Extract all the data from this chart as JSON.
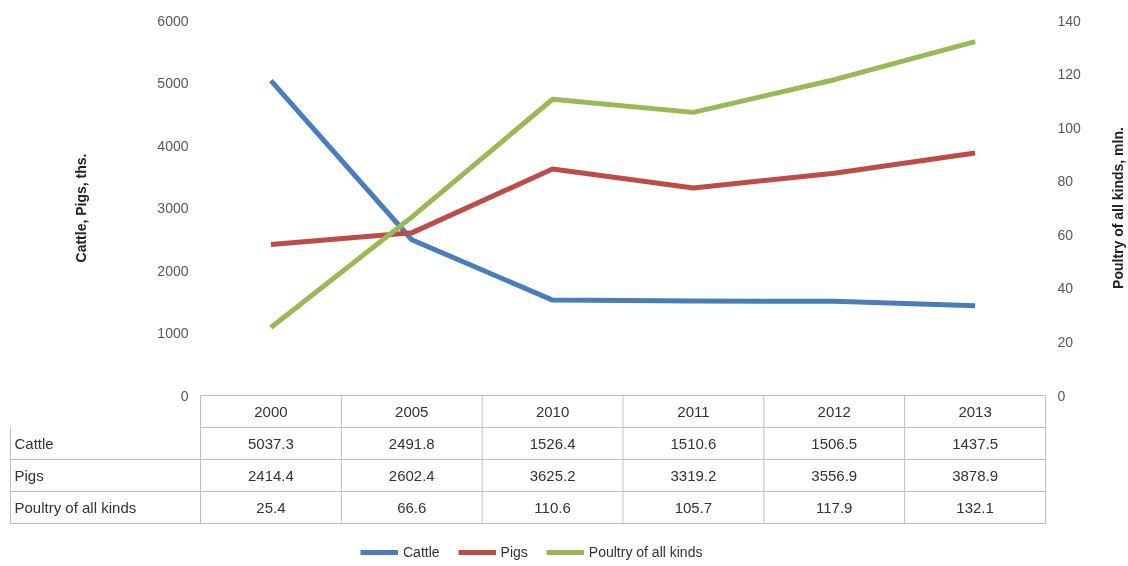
{
  "chart_data": {
    "type": "line",
    "categories": [
      "2000",
      "2005",
      "2010",
      "2011",
      "2012",
      "2013"
    ],
    "series": [
      {
        "name": "Cattle",
        "color": "#4a7ebb",
        "values": [
          5037.3,
          2491.8,
          1526.4,
          1510.6,
          1506.5,
          1437.5
        ]
      },
      {
        "name": "Pigs",
        "color": "#be4b48",
        "values": [
          2414.4,
          2602.4,
          3625.2,
          3319.2,
          3556.9,
          3878.9
        ]
      },
      {
        "name": "Poultry of all kinds",
        "color": "#98b954",
        "values": [
          25.4,
          66.6,
          110.6,
          105.7,
          117.9,
          132.1
        ],
        "axis": "y2"
      }
    ],
    "ylim": [
      0,
      6000
    ],
    "yticks": [
      0,
      1000,
      2000,
      3000,
      4000,
      5000,
      6000
    ],
    "y2lim": [
      0,
      140
    ],
    "y2ticks": [
      0,
      20,
      40,
      60,
      80,
      100,
      120,
      140
    ],
    "ylabel": "Cattle, Pigs, ths.",
    "y2label": "Poultry of all kinds, mln.",
    "data_labels": true,
    "legend": "bottom",
    "line_style": "solid"
  }
}
